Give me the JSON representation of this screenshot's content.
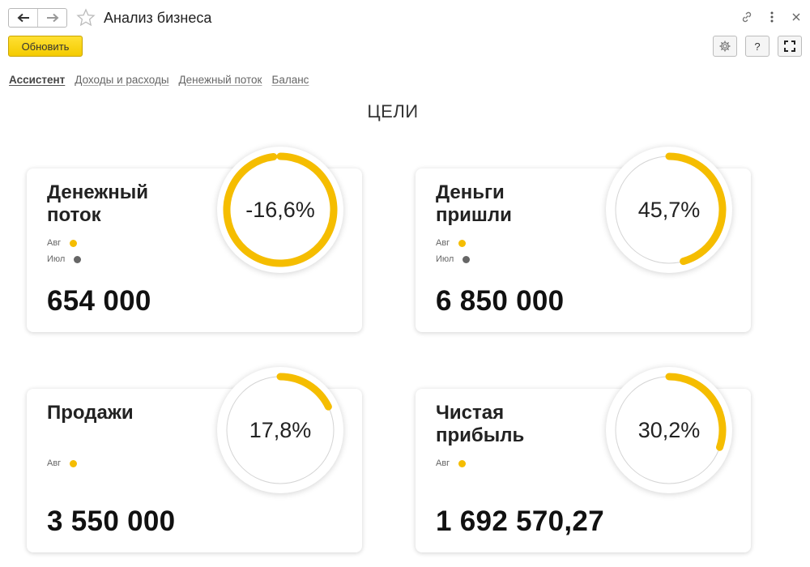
{
  "window": {
    "title": "Анализ бизнеса"
  },
  "toolbar": {
    "refresh_label": "Обновить",
    "help_label": "?"
  },
  "tabs": [
    {
      "label": "Ассистент",
      "active": true
    },
    {
      "label": "Доходы и расходы",
      "active": false
    },
    {
      "label": "Денежный поток",
      "active": false
    },
    {
      "label": "Баланс",
      "active": false
    }
  ],
  "section_title": "ЦЕЛИ",
  "colors": {
    "accent": "#f5bd00",
    "ring_track": "#d4d4d4",
    "dot_current": "#f5bd00",
    "dot_previous": "#666666"
  },
  "cards": [
    {
      "title_line1": "Денежный",
      "title_line2": "поток",
      "legend": [
        {
          "label": "Авг",
          "color": "#f5bd00"
        },
        {
          "label": "Июл",
          "color": "#666666"
        }
      ],
      "value": "654 000",
      "percent_text": "-16,6%",
      "ring_fraction": 0.98
    },
    {
      "title_line1": "Деньги",
      "title_line2": "пришли",
      "legend": [
        {
          "label": "Авг",
          "color": "#f5bd00"
        },
        {
          "label": "Июл",
          "color": "#666666"
        }
      ],
      "value": "6 850 000",
      "percent_text": "45,7%",
      "ring_fraction": 0.457
    },
    {
      "title_line1": "Продажи",
      "title_line2": "",
      "legend": [
        {
          "label": "Авг",
          "color": "#f5bd00"
        }
      ],
      "value": "3 550 000",
      "percent_text": "17,8%",
      "ring_fraction": 0.178
    },
    {
      "title_line1": "Чистая",
      "title_line2": "прибыль",
      "legend": [
        {
          "label": "Авг",
          "color": "#f5bd00"
        }
      ],
      "value": "1 692 570,27",
      "percent_text": "30,2%",
      "ring_fraction": 0.302
    }
  ]
}
